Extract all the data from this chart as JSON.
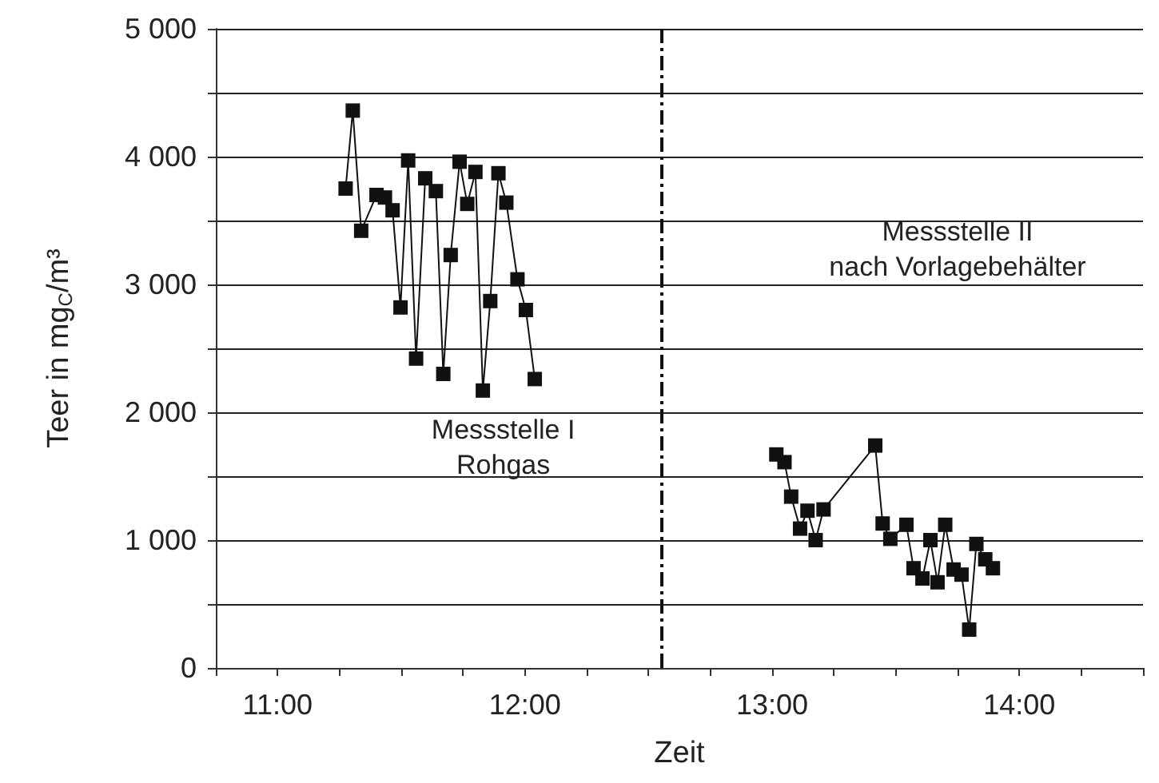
{
  "chart_data": {
    "type": "line",
    "xlabel": "Zeit",
    "ylabel": "Teer in mg$_{C}$/m³",
    "xlim": [
      10.75,
      14.5
    ],
    "xticks": [
      {
        "value": 10.75,
        "label": null
      },
      {
        "value": 11,
        "label": "11:00"
      },
      {
        "value": 11.25,
        "label": null
      },
      {
        "value": 11.5,
        "label": null
      },
      {
        "value": 11.75,
        "label": null
      },
      {
        "value": 12,
        "label": "12:00"
      },
      {
        "value": 12.25,
        "label": null
      },
      {
        "value": 12.5,
        "label": null
      },
      {
        "value": 12.75,
        "label": null
      },
      {
        "value": 13,
        "label": "13:00"
      },
      {
        "value": 13.25,
        "label": null
      },
      {
        "value": 13.5,
        "label": null
      },
      {
        "value": 13.75,
        "label": null
      },
      {
        "value": 14,
        "label": "14:00"
      },
      {
        "value": 14.25,
        "label": null
      },
      {
        "value": 14.5,
        "label": null
      }
    ],
    "ylim": [
      0,
      5000
    ],
    "yticks": [
      {
        "value": 0,
        "label": "0"
      },
      {
        "value": 500,
        "label": null
      },
      {
        "value": 1000,
        "label": "1 000"
      },
      {
        "value": 1500,
        "label": null
      },
      {
        "value": 2000,
        "label": "2 000"
      },
      {
        "value": 2500,
        "label": null
      },
      {
        "value": 3000,
        "label": "3 000"
      },
      {
        "value": 3500,
        "label": null
      },
      {
        "value": 4000,
        "label": "4 000"
      },
      {
        "value": 4500,
        "label": null
      },
      {
        "value": 5000,
        "label": "5 000"
      }
    ],
    "grid": "y",
    "marker": "square",
    "line_style": "solid",
    "series": [
      {
        "color": "#111111",
        "x": [
          11.275,
          11.304,
          11.338,
          11.4,
          11.434,
          11.465,
          11.497,
          11.528,
          11.56,
          11.597,
          11.64,
          11.67,
          11.7,
          11.736,
          11.767,
          11.8,
          11.83,
          11.86,
          11.893,
          11.925,
          11.97,
          12.004,
          12.04
        ],
        "values": [
          3750,
          4360,
          3420,
          3700,
          3680,
          3580,
          2820,
          3970,
          2420,
          3830,
          3730,
          2300,
          3230,
          3960,
          3630,
          3880,
          2170,
          2870,
          3870,
          3640,
          3040,
          2800,
          2260
        ]
      },
      {
        "color": "#111111",
        "x": [
          13.017,
          13.05,
          13.077,
          13.113,
          13.143,
          13.176,
          13.208,
          13.417,
          13.447,
          13.478,
          13.543,
          13.572,
          13.608,
          13.64,
          13.669,
          13.7,
          13.734,
          13.766,
          13.797,
          13.826,
          13.862,
          13.893
        ],
        "values": [
          1670,
          1610,
          1340,
          1090,
          1230,
          1000,
          1240,
          1740,
          1130,
          1010,
          1120,
          780,
          700,
          1000,
          670,
          1120,
          770,
          730,
          300,
          970,
          850,
          780
        ]
      }
    ],
    "ref_lines": [
      {
        "axis": "x",
        "value": 12.55,
        "color": "#111111",
        "line_style": "dashdot"
      }
    ],
    "annotations": [
      "Messstelle I\nRohgas",
      "Messstelle II\nnach Vorlagebehälter"
    ]
  }
}
